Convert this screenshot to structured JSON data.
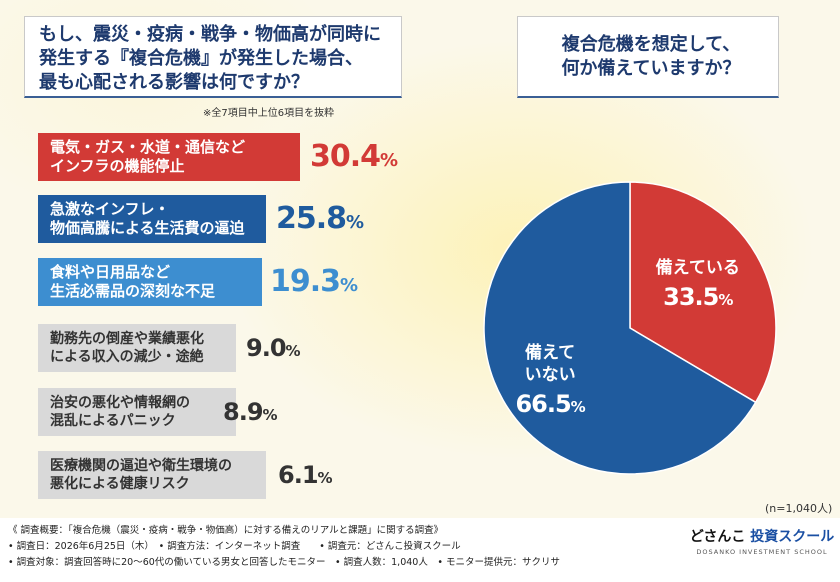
{
  "question1": {
    "lines": [
      "もし、震災・疫病・戦争・物価高が同時に",
      "発生する『複合危機』が発生した場合、",
      "最も心配される影響は何ですか？"
    ]
  },
  "question2": {
    "lines": [
      "複合危機を想定して、",
      "何か備えていますか？"
    ]
  },
  "note": "※全7項目中上位6項目を抜粋",
  "n_label": "(n=1,040人)",
  "colors": {
    "red": "#d23a36",
    "blue": "#1f5b9e",
    "lightblue": "#3d8ed0",
    "gray": "#d9d9d9",
    "navy": "#1e3a6e"
  },
  "chart_data": [
    {
      "type": "bar",
      "orientation": "horizontal",
      "unit": "%",
      "categories": [
        [
          "電気・ガス・水道・通信など",
          "インフラの機能停止"
        ],
        [
          "急激なインフレ・",
          "物価高騰による生活費の逼迫"
        ],
        [
          "食料や日用品など",
          "生活必需品の深刻な不足"
        ],
        [
          "勤務先の倒産や業績悪化",
          "による収入の減少・途絶"
        ],
        [
          "治安の悪化や情報網の",
          "混乱によるパニック"
        ],
        [
          "医療機関の逼迫や衛生環境の",
          "悪化による健康リスク"
        ]
      ],
      "values": [
        30.4,
        25.8,
        19.3,
        9.0,
        8.9,
        6.1
      ],
      "value_labels": [
        "30.4",
        "25.8",
        "19.3",
        "9.0",
        "8.9",
        "6.1"
      ],
      "value_colors": [
        "#d23a36",
        "#1f5b9e",
        "#3d8ed0",
        "#333333",
        "#333333",
        "#333333"
      ],
      "fill_colors": [
        "#d23a36",
        "#1f5b9e",
        "#3d8ed0",
        "#d9d9d9",
        "#d9d9d9",
        "#d9d9d9"
      ]
    },
    {
      "type": "pie",
      "slices": [
        {
          "label": "備えている",
          "value": 33.5,
          "value_label": "33.5",
          "color": "#d23a36"
        },
        {
          "label": "備えて\nいない",
          "value": 66.5,
          "value_label": "66.5",
          "color": "#1f5b9e"
        }
      ],
      "start": "12 o'clock",
      "direction": "clockwise"
    }
  ],
  "footer": {
    "lines": [
      "《 調査概要：「複合危機（震災・疫病・戦争・物価高）に対する備えのリアルと課題」に関する調査》",
      "• 調査日：2026年6月25日（木）　• 調査方法：インターネット調査　　• 調査元：どさんこ投資スクール",
      "• 調査対象：調査回答時に20〜60代の働いている男女と回答したモニター　• 調査人数：1,040人　• モニター提供元：サクリサ"
    ]
  },
  "brand": {
    "main_a": "どさんこ",
    "main_b": "投資スクール",
    "sub": "DOSANKO INVESTMENT SCHOOL"
  }
}
